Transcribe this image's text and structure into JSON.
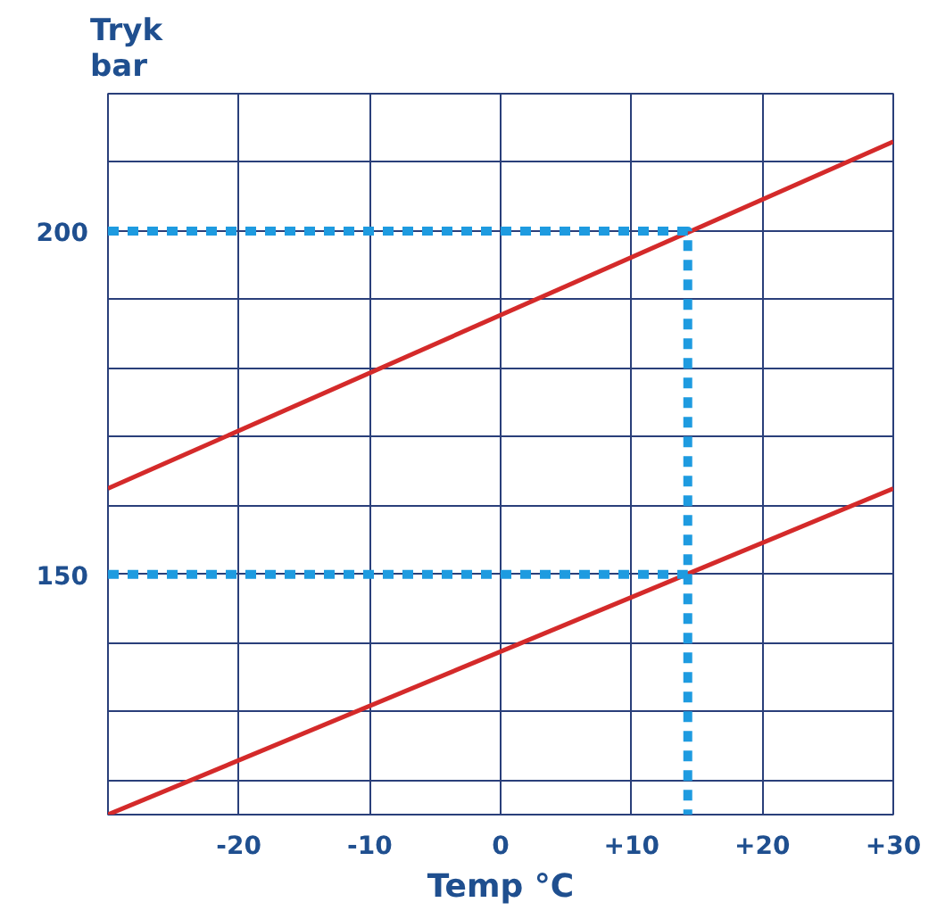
{
  "chart_data": {
    "type": "line",
    "ylabel": "Tryk\nbar",
    "xlabel": "Temp °C",
    "xlim": [
      -30,
      30
    ],
    "ylim": [
      115,
      220
    ],
    "xticks": [
      {
        "value": -20,
        "label": "-20"
      },
      {
        "value": -10,
        "label": "-10"
      },
      {
        "value": 0,
        "label": "0"
      },
      {
        "value": 10,
        "label": "+10"
      },
      {
        "value": 20,
        "label": "+20"
      },
      {
        "value": 30,
        "label": "+30"
      }
    ],
    "yticks": [
      {
        "value": 120,
        "label": null
      },
      {
        "value": 130,
        "label": null
      },
      {
        "value": 140,
        "label": null
      },
      150,
      {
        "value": 160,
        "label": null
      },
      {
        "value": 170,
        "label": null
      },
      {
        "value": 180,
        "label": null
      },
      {
        "value": 190,
        "label": null
      },
      200,
      {
        "value": 210,
        "label": null
      },
      {
        "value": 220,
        "label": null
      }
    ],
    "grid": true,
    "line_style": "solid",
    "series": [
      {
        "x": [
          -30,
          30
        ],
        "values": [
          162.5,
          213
        ],
        "color": "#d42a2a"
      },
      {
        "x": [
          -30,
          30
        ],
        "values": [
          115,
          162.5
        ],
        "color": "#d42a2a"
      },
      {
        "x": [
          -30,
          14.3,
          14.3
        ],
        "values": [
          200,
          200,
          115
        ],
        "color": "#1e9be0",
        "line_style": "dashed"
      },
      {
        "x": [
          -30,
          14.3
        ],
        "values": [
          150,
          150
        ],
        "color": "#1e9be0",
        "line_style": "dashed"
      }
    ]
  }
}
